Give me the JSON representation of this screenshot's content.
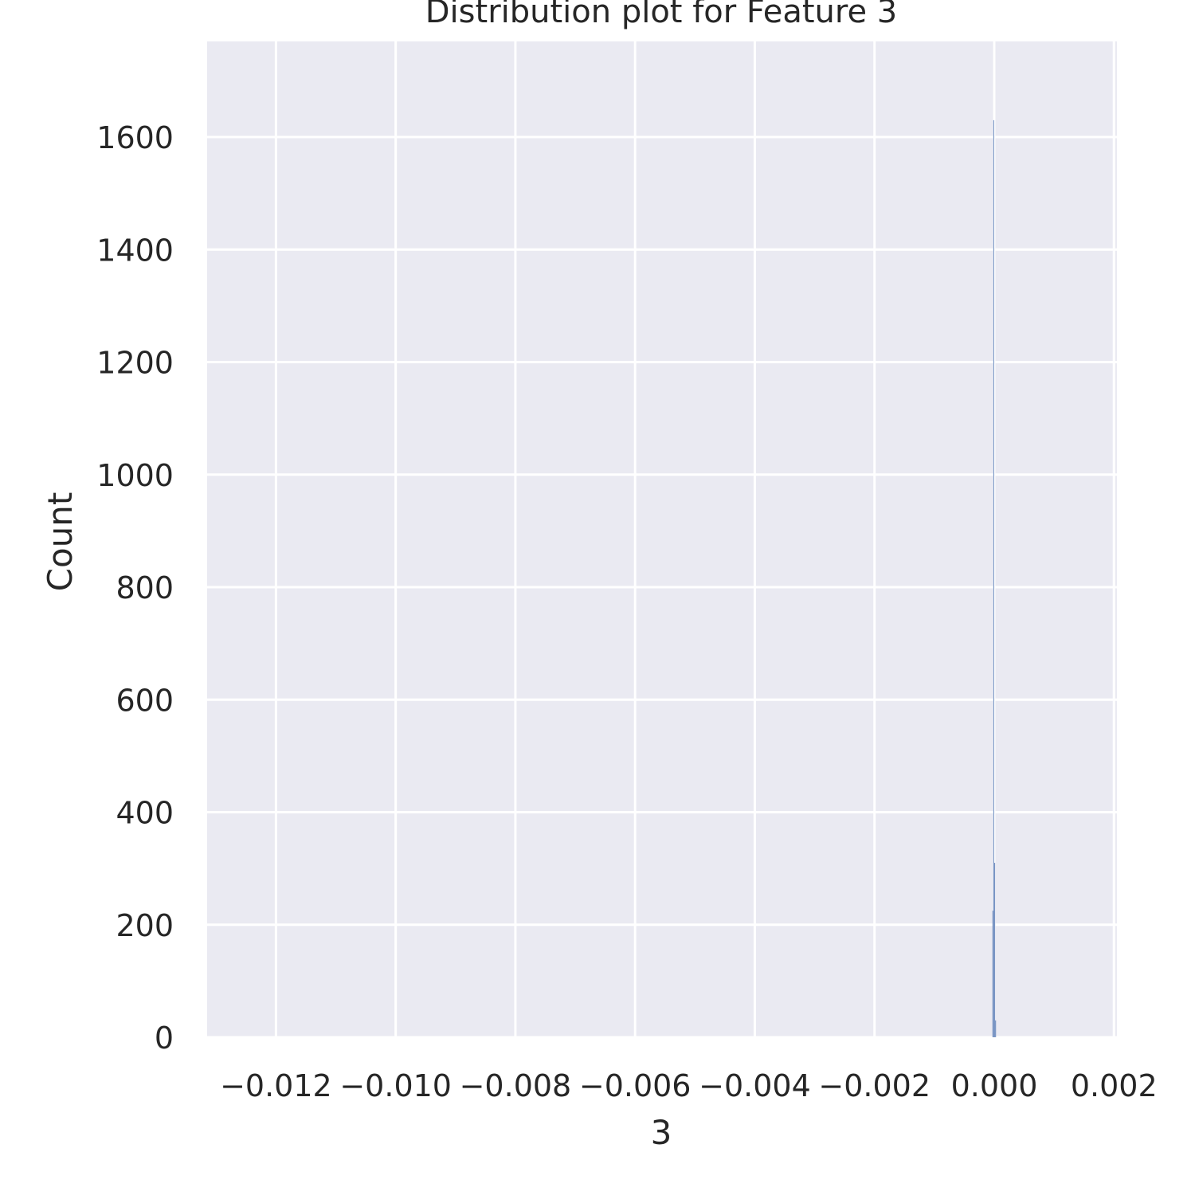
{
  "chart_data": {
    "type": "bar",
    "title": "Distribution plot for Feature 3",
    "xlabel": "3",
    "ylabel": "Count",
    "xlim": [
      -0.01315,
      0.00205
    ],
    "ylim": [
      0,
      1770
    ],
    "grid": true,
    "colors": {
      "background": "#eaeaf2",
      "grid": "#ffffff",
      "bar": "#4c72b0",
      "text": "#262626"
    },
    "x_ticks": [
      -0.012,
      -0.01,
      -0.008,
      -0.006,
      -0.004,
      -0.002,
      0.0,
      0.002
    ],
    "x_tick_labels": [
      "−0.012",
      "−0.010",
      "−0.008",
      "−0.006",
      "−0.004",
      "−0.002",
      "0.000",
      "0.002"
    ],
    "y_ticks": [
      0,
      200,
      400,
      600,
      800,
      1000,
      1200,
      1400,
      1600
    ],
    "y_tick_labels": [
      "0",
      "200",
      "400",
      "600",
      "800",
      "1000",
      "1200",
      "1400",
      "1600"
    ],
    "bins": [
      {
        "x0": -3e-05,
        "x1": -1.5e-05,
        "count": 225
      },
      {
        "x0": -1.5e-05,
        "x1": 0.0,
        "count": 1630
      },
      {
        "x0": 0.0,
        "x1": 1.5e-05,
        "count": 310
      },
      {
        "x0": 1.5e-05,
        "x1": 3e-05,
        "count": 30
      }
    ]
  }
}
